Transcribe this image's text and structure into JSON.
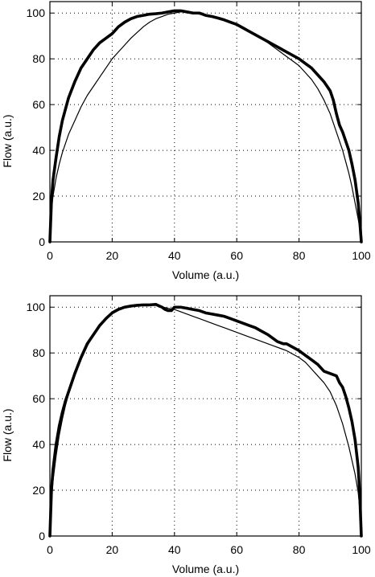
{
  "chart_data": [
    {
      "type": "line",
      "title": "",
      "xlabel": "Volume (a.u.)",
      "ylabel": "Flow (a.u.)",
      "xlim": [
        0,
        100
      ],
      "ylim": [
        0,
        105
      ],
      "xticks": [
        0,
        20,
        40,
        60,
        80,
        100
      ],
      "xtick_labels": [
        "0",
        "20",
        "40",
        "60",
        "80",
        "100"
      ],
      "yticks": [
        0,
        20,
        40,
        60,
        80,
        100
      ],
      "ytick_labels": [
        "0",
        "20",
        "40",
        "60",
        "80",
        "100"
      ],
      "grid": true,
      "grid_style": "dotted",
      "legend": "none",
      "series": [
        {
          "style": "thick",
          "color": "#000000",
          "x": [
            0,
            0.5,
            1,
            2,
            3,
            4,
            5,
            6,
            8,
            10,
            12,
            14,
            16,
            18,
            20,
            22,
            24,
            26,
            28,
            30,
            32,
            34,
            36,
            38,
            40,
            42,
            44,
            46,
            48,
            50,
            52,
            54,
            56,
            58,
            60,
            62,
            64,
            66,
            68,
            70,
            72,
            74,
            76,
            78,
            80,
            82,
            84,
            86,
            88,
            90,
            91,
            92,
            93,
            94,
            95,
            96,
            97,
            98,
            99,
            99.5,
            100
          ],
          "y": [
            0,
            18,
            27,
            37,
            46,
            53,
            58,
            63,
            70,
            76,
            80,
            84,
            87,
            89,
            91,
            94,
            96,
            97.5,
            98.5,
            99,
            99.5,
            99.7,
            100,
            100.5,
            101,
            101,
            100.5,
            100,
            100,
            99,
            98.5,
            97.8,
            97,
            96,
            95,
            93.5,
            92,
            90.5,
            89,
            87.5,
            86,
            84.5,
            83,
            81.5,
            80,
            78,
            76,
            73,
            70,
            66,
            62,
            56,
            51,
            48,
            44,
            40,
            34,
            27,
            17,
            9,
            0
          ]
        },
        {
          "style": "thin",
          "color": "#000000",
          "x": [
            0,
            0.5,
            1,
            2,
            3,
            4,
            5,
            6,
            8,
            10,
            12,
            14,
            16,
            18,
            20,
            22,
            24,
            26,
            28,
            30,
            32,
            34,
            36,
            38,
            40,
            42,
            44,
            46,
            48,
            50,
            52,
            54,
            56,
            58,
            60,
            62,
            64,
            66,
            68,
            70,
            72,
            74,
            76,
            78,
            80,
            82,
            84,
            86,
            88,
            90,
            91,
            92,
            93,
            94,
            95,
            96,
            97,
            98,
            99,
            99.5,
            100
          ],
          "y": [
            0,
            14,
            20,
            28,
            34,
            39,
            43,
            47,
            53,
            59,
            64,
            68,
            72,
            76,
            80,
            83,
            86,
            89,
            91.5,
            94,
            96,
            97.5,
            98.5,
            99.5,
            100,
            100.5,
            100.5,
            100,
            99.5,
            99,
            98.5,
            98,
            97,
            96,
            95,
            93.5,
            92,
            90.5,
            89,
            87,
            85,
            83,
            81,
            79,
            77,
            74,
            71,
            67,
            62,
            56,
            52,
            48,
            44,
            40,
            35,
            30,
            24,
            17,
            10,
            6,
            0
          ]
        }
      ]
    },
    {
      "type": "line",
      "title": "",
      "xlabel": "Volume (a.u.)",
      "ylabel": "Flow (a.u.)",
      "xlim": [
        0,
        100
      ],
      "ylim": [
        0,
        105
      ],
      "xticks": [
        0,
        20,
        40,
        60,
        80,
        100
      ],
      "xtick_labels": [
        "0",
        "20",
        "40",
        "60",
        "80",
        "100"
      ],
      "yticks": [
        0,
        20,
        40,
        60,
        80,
        100
      ],
      "ytick_labels": [
        "0",
        "20",
        "40",
        "60",
        "80",
        "100"
      ],
      "grid": true,
      "grid_style": "dotted",
      "legend": "none",
      "series": [
        {
          "style": "thick",
          "color": "#000000",
          "x": [
            0,
            0.5,
            1,
            2,
            3,
            4,
            5,
            6,
            8,
            10,
            12,
            14,
            16,
            18,
            20,
            22,
            24,
            26,
            28,
            30,
            32,
            34,
            36,
            37,
            38,
            39,
            40,
            42,
            44,
            46,
            48,
            50,
            52,
            54,
            56,
            58,
            60,
            62,
            64,
            66,
            68,
            70,
            72,
            73,
            74,
            75,
            76,
            78,
            80,
            82,
            84,
            86,
            88,
            90,
            92,
            93,
            94,
            95,
            96,
            97,
            98,
            99,
            99.5,
            100
          ],
          "y": [
            0,
            20,
            29,
            40,
            48,
            54,
            59,
            63,
            71,
            78,
            84,
            88,
            92,
            95,
            97.5,
            99,
            100,
            100.5,
            100.8,
            101,
            101,
            101.2,
            100,
            99,
            98.5,
            98.5,
            100,
            100,
            99.5,
            99,
            98.5,
            97.5,
            97,
            96.5,
            96,
            95,
            94,
            93,
            92,
            91,
            89.5,
            88,
            86,
            85,
            84.5,
            84,
            84,
            82.5,
            81,
            79,
            77,
            75,
            72,
            71,
            70,
            67,
            65,
            61,
            56,
            50,
            42,
            30,
            18,
            0
          ]
        },
        {
          "style": "thin",
          "color": "#000000",
          "x": [
            0,
            0.5,
            1,
            2,
            3,
            4,
            5,
            6,
            8,
            10,
            12,
            14,
            16,
            18,
            20,
            22,
            24,
            26,
            28,
            30,
            32,
            34,
            36,
            38,
            40,
            42,
            44,
            46,
            48,
            50,
            52,
            54,
            56,
            58,
            60,
            62,
            64,
            66,
            68,
            70,
            72,
            74,
            76,
            78,
            80,
            82,
            84,
            86,
            88,
            90,
            92,
            93,
            94,
            95,
            96,
            97,
            98,
            99,
            99.5,
            100
          ],
          "y": [
            0,
            16,
            24,
            35,
            44,
            51,
            57,
            62,
            70,
            77,
            83,
            88,
            92,
            95.5,
            98,
            99.5,
            100.3,
            100.6,
            100.8,
            100.9,
            101,
            100.8,
            100.2,
            99.5,
            99,
            98,
            97,
            96,
            95,
            94,
            93,
            92,
            91,
            90,
            89,
            88,
            87,
            86,
            85,
            84,
            83,
            82,
            81,
            79.5,
            78,
            76,
            73,
            70,
            67,
            63,
            57,
            53,
            49,
            44,
            39,
            33,
            27,
            19,
            12,
            0
          ]
        }
      ]
    }
  ]
}
